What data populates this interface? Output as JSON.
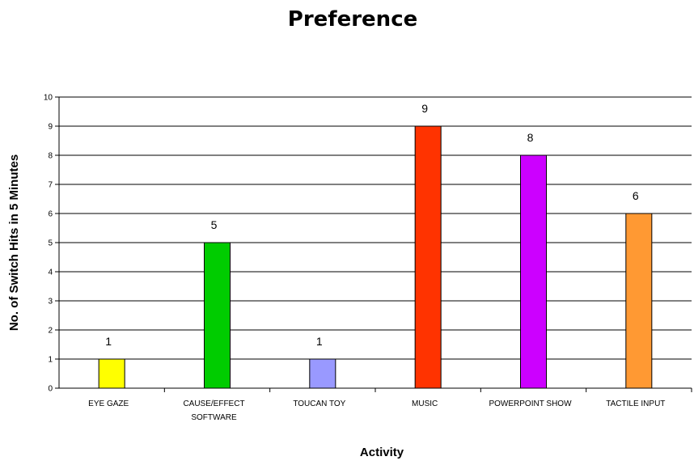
{
  "chart_data": {
    "type": "bar",
    "title": "Preference",
    "xlabel": "Activity",
    "ylabel": "No. of Switch Hits in 5 Minutes",
    "ylim": [
      0,
      10
    ],
    "yticks": [
      0,
      1,
      2,
      3,
      4,
      5,
      6,
      7,
      8,
      9,
      10
    ],
    "grid": true,
    "legend": "none",
    "categories": [
      [
        "EYE GAZE"
      ],
      [
        "CAUSE/EFFECT",
        "SOFTWARE"
      ],
      [
        "TOUCAN TOY"
      ],
      [
        "MUSIC"
      ],
      [
        "POWERPOINT SHOW"
      ],
      [
        "TACTILE INPUT"
      ]
    ],
    "values": [
      1,
      5,
      1,
      9,
      8,
      6
    ],
    "data_labels": [
      "1",
      "5",
      "1",
      "9",
      "8",
      "6"
    ],
    "colors": [
      "#ffff00",
      "#00cc00",
      "#9999ff",
      "#ff3300",
      "#cc00ff",
      "#ff9933"
    ]
  }
}
